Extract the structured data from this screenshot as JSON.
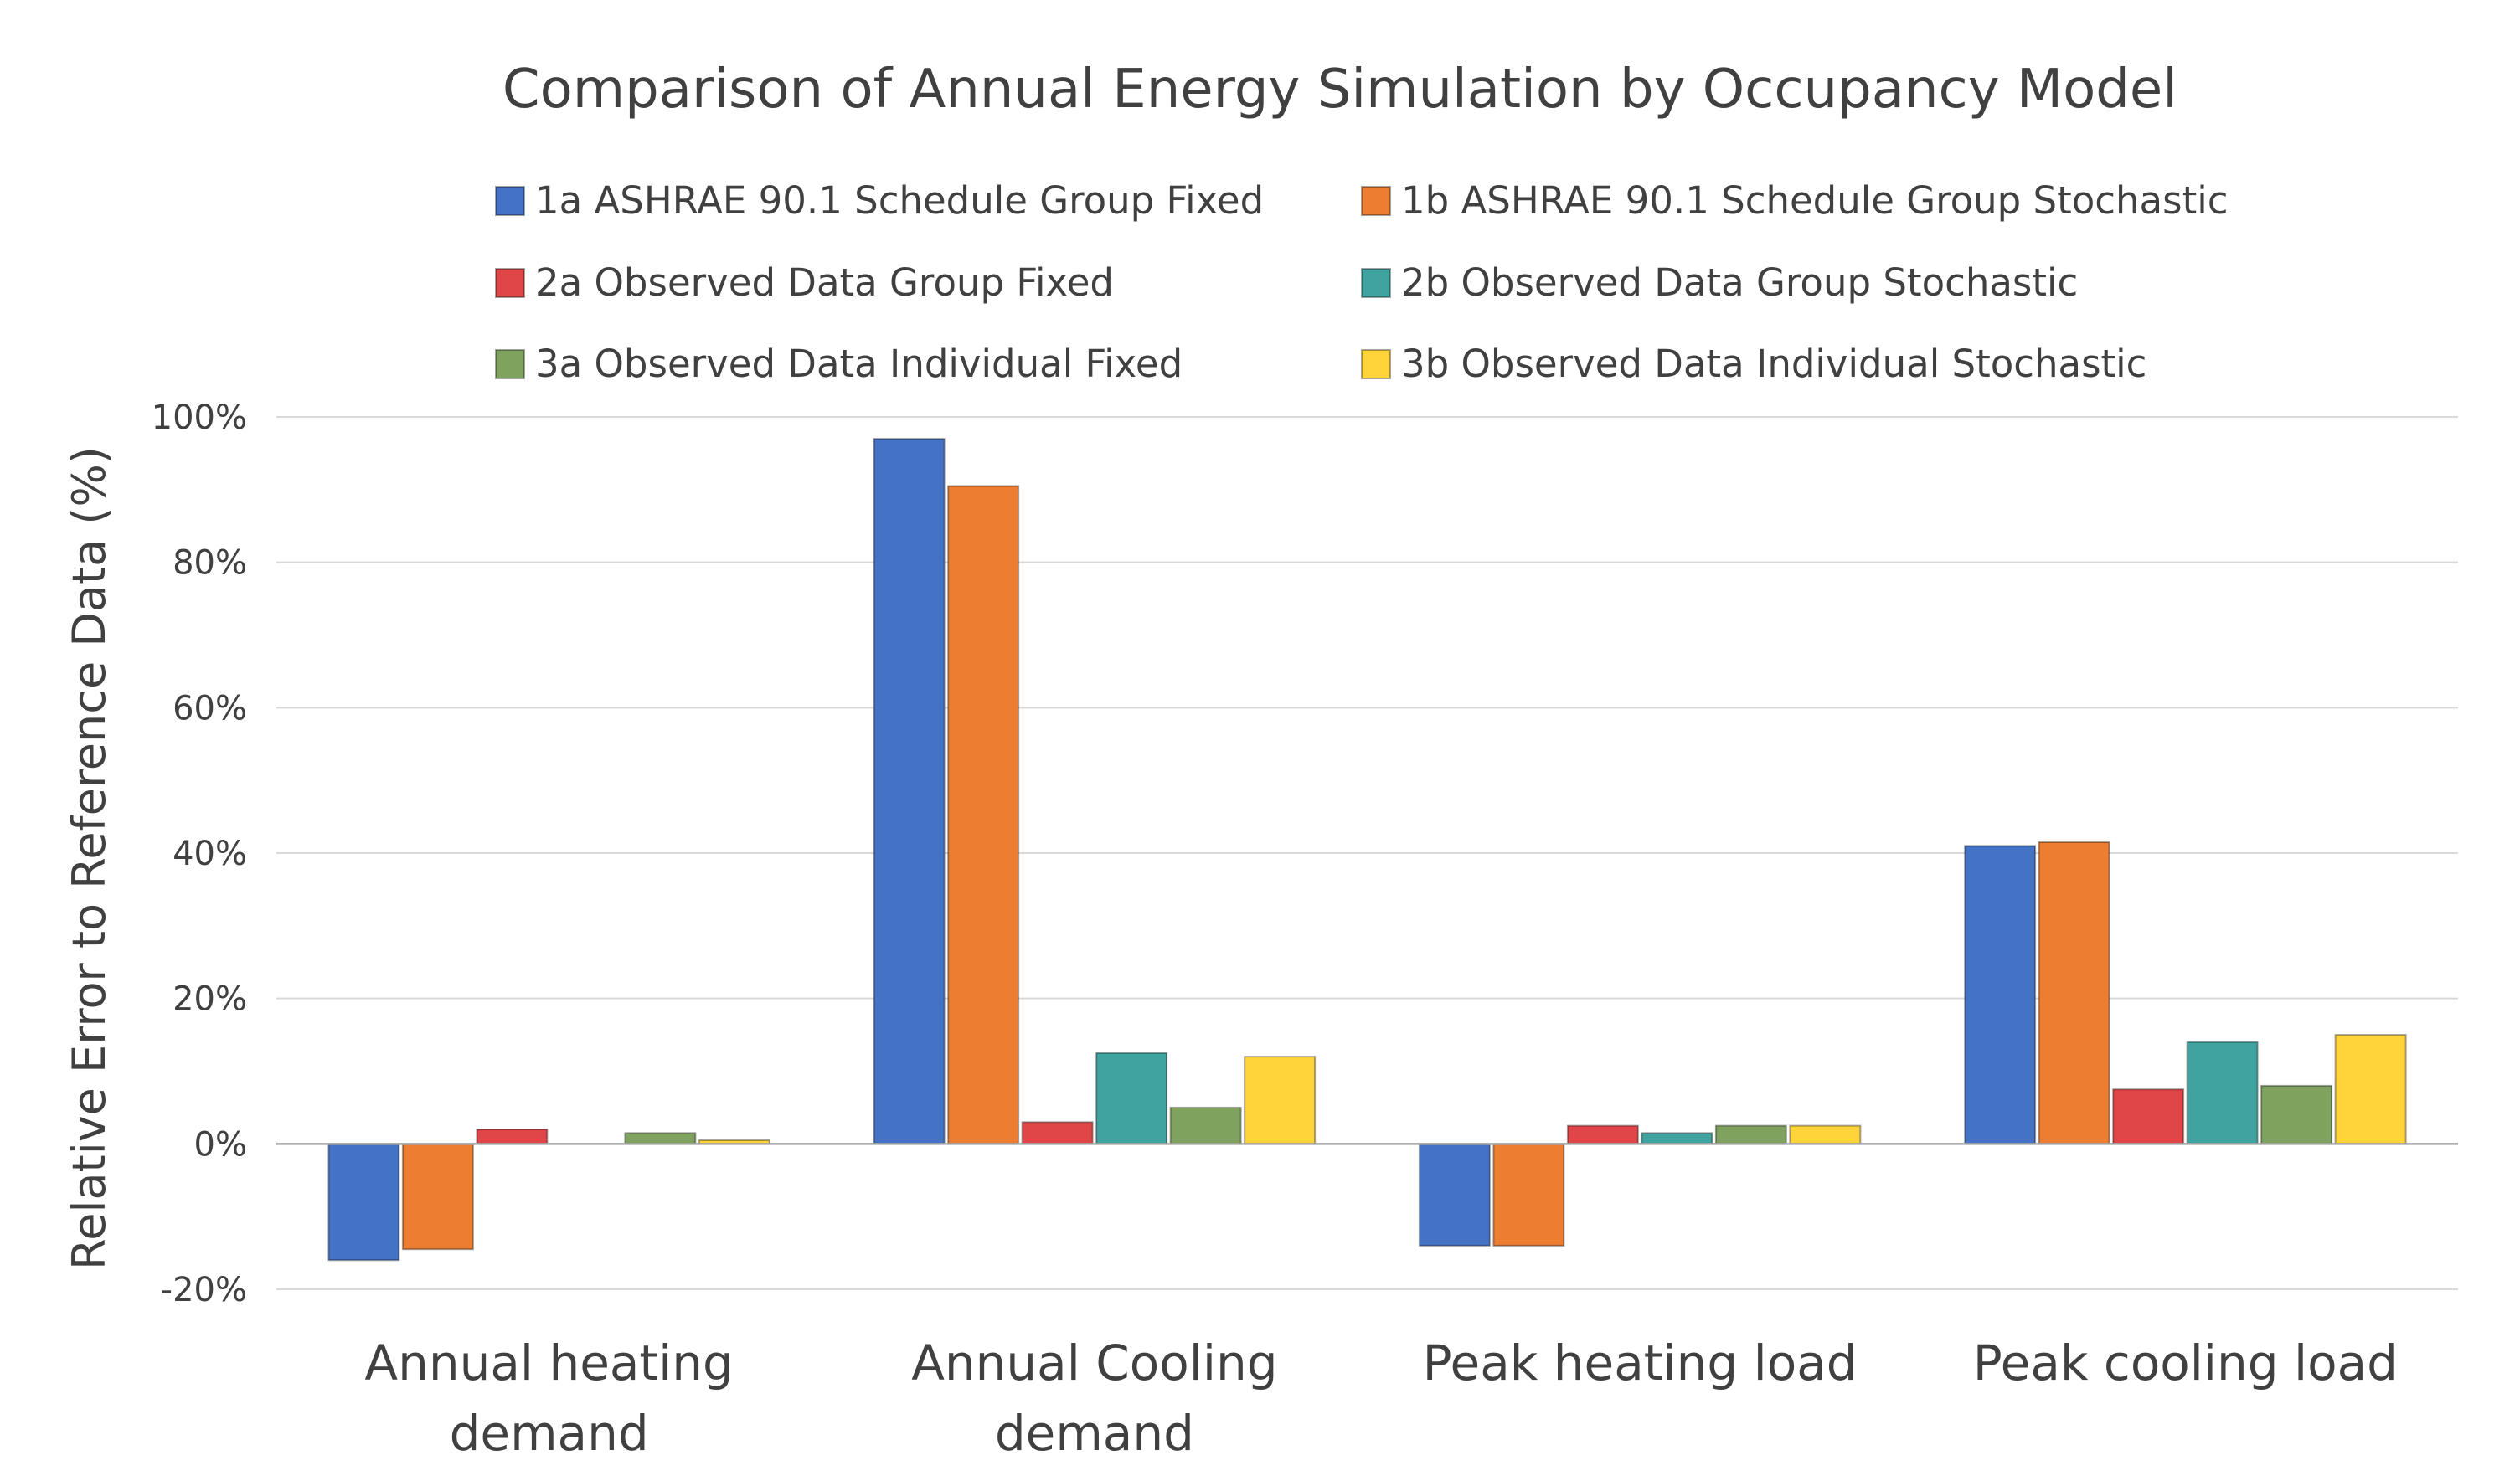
{
  "chart_data": {
    "type": "bar",
    "title": "Comparison of Annual Energy Simulation by Occupancy Model",
    "xlabel": "",
    "ylabel": "Relative Error to Reference Data (%)",
    "ylim": [
      -20,
      100
    ],
    "yticks": [
      100,
      80,
      60,
      40,
      20,
      0,
      -20
    ],
    "ytick_labels": [
      "100%",
      "80%",
      "60%",
      "40%",
      "20%",
      "0%",
      "-20%"
    ],
    "grid": true,
    "legend_position": "top",
    "categories": [
      [
        "Annual heating",
        "demand"
      ],
      [
        "Annual Cooling",
        "demand"
      ],
      [
        "Peak heating load"
      ],
      [
        "Peak cooling load"
      ]
    ],
    "series": [
      {
        "name": "1a ASHRAE 90.1 Schedule Group Fixed",
        "color": "#4472C4",
        "values": [
          -16,
          97,
          -14,
          41
        ]
      },
      {
        "name": "1b ASHRAE 90.1 Schedule Group Stochastic",
        "color": "#ED7D31",
        "values": [
          -14.5,
          90.5,
          -14,
          41.5
        ]
      },
      {
        "name": "2a Observed Data Group Fixed",
        "color": "#E04548",
        "values": [
          2,
          3,
          2.5,
          7.5
        ]
      },
      {
        "name": "2b Observed Data Group Stochastic",
        "color": "#3FA3A0",
        "values": [
          0,
          12.5,
          1.5,
          14
        ]
      },
      {
        "name": "3a Observed Data Individual Fixed",
        "color": "#7FA35F",
        "values": [
          1.5,
          5,
          2.5,
          8
        ]
      },
      {
        "name": "3b Observed Data Individual Stochastic",
        "color": "#FFD43A",
        "values": [
          0.5,
          12,
          2.5,
          15
        ]
      }
    ]
  }
}
